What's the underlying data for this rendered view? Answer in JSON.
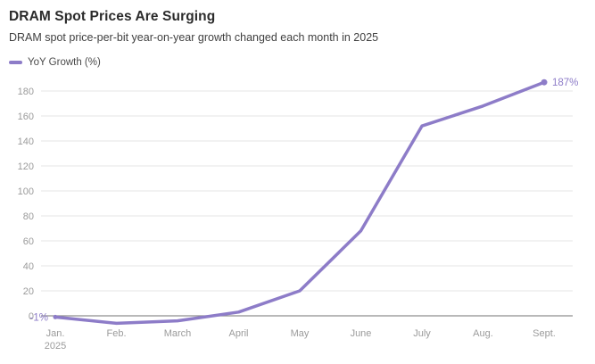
{
  "header": {
    "title": "DRAM Spot Prices Are Surging",
    "subtitle": "DRAM spot price-per-bit year-on-year growth changed each month in 2025"
  },
  "legend": {
    "label": "YoY Growth (%)",
    "color": "#8d7cc8"
  },
  "chart_data": {
    "type": "line",
    "title": "DRAM Spot Prices Are Surging",
    "subtitle": "DRAM spot price-per-bit year-on-year growth changed each month in 2025",
    "categories": [
      "Jan.\n2025",
      "Feb.",
      "March",
      "April",
      "May",
      "June",
      "July",
      "Aug.",
      "Sept."
    ],
    "series": [
      {
        "name": "YoY Growth (%)",
        "values": [
          -1,
          -6,
          -4,
          3,
          20,
          68,
          152,
          168,
          187
        ]
      }
    ],
    "annotations": [
      {
        "text": "-1%",
        "index": 0,
        "position": "left"
      },
      {
        "text": "187%",
        "index": 8,
        "position": "right"
      }
    ],
    "yticks": [
      0,
      20,
      40,
      60,
      80,
      100,
      120,
      140,
      160,
      180
    ],
    "ylim": [
      -12,
      195
    ],
    "grid": true,
    "legend_position": "top-left",
    "line_color": "#8d7cc8",
    "grid_color": "#e5e5e5",
    "zero_line_color": "#8f8f8f",
    "axis_label_color": "#9b9b9b"
  }
}
